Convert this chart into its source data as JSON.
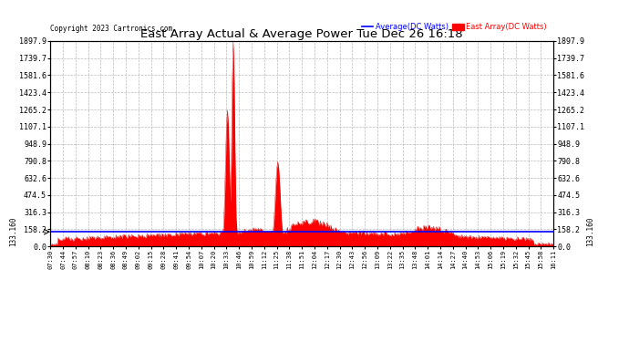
{
  "title": "East Array Actual & Average Power Tue Dec 26 16:18",
  "copyright": "Copyright 2023 Cartronics.com",
  "legend_avg": "Average(DC Watts)",
  "legend_east": "East Array(DC Watts)",
  "avg_value": 133.16,
  "ymax": 1897.9,
  "yticks": [
    0.0,
    158.2,
    316.3,
    474.5,
    632.6,
    790.8,
    948.9,
    1107.1,
    1265.2,
    1423.4,
    1581.6,
    1739.7,
    1897.9
  ],
  "bg_color": "#ffffff",
  "grid_color": "#aaaaaa",
  "avg_line_color": "#0000ff",
  "east_fill_color": "#ff0000",
  "east_line_color": "#dd0000",
  "title_color": "#000000",
  "copyright_color": "#000000",
  "legend_avg_color": "#0000ff",
  "legend_east_color": "#ff0000",
  "xtick_labels": [
    "07:30",
    "07:44",
    "07:57",
    "08:10",
    "08:23",
    "08:36",
    "08:49",
    "09:02",
    "09:15",
    "09:28",
    "09:41",
    "09:54",
    "10:07",
    "10:20",
    "10:33",
    "10:46",
    "10:59",
    "11:12",
    "11:25",
    "11:38",
    "11:51",
    "12:04",
    "12:17",
    "12:30",
    "12:43",
    "12:56",
    "13:09",
    "13:22",
    "13:35",
    "13:48",
    "14:01",
    "14:14",
    "14:27",
    "14:40",
    "14:53",
    "15:06",
    "15:19",
    "15:32",
    "15:45",
    "15:58",
    "16:11"
  ],
  "annotation_value": "133.160"
}
